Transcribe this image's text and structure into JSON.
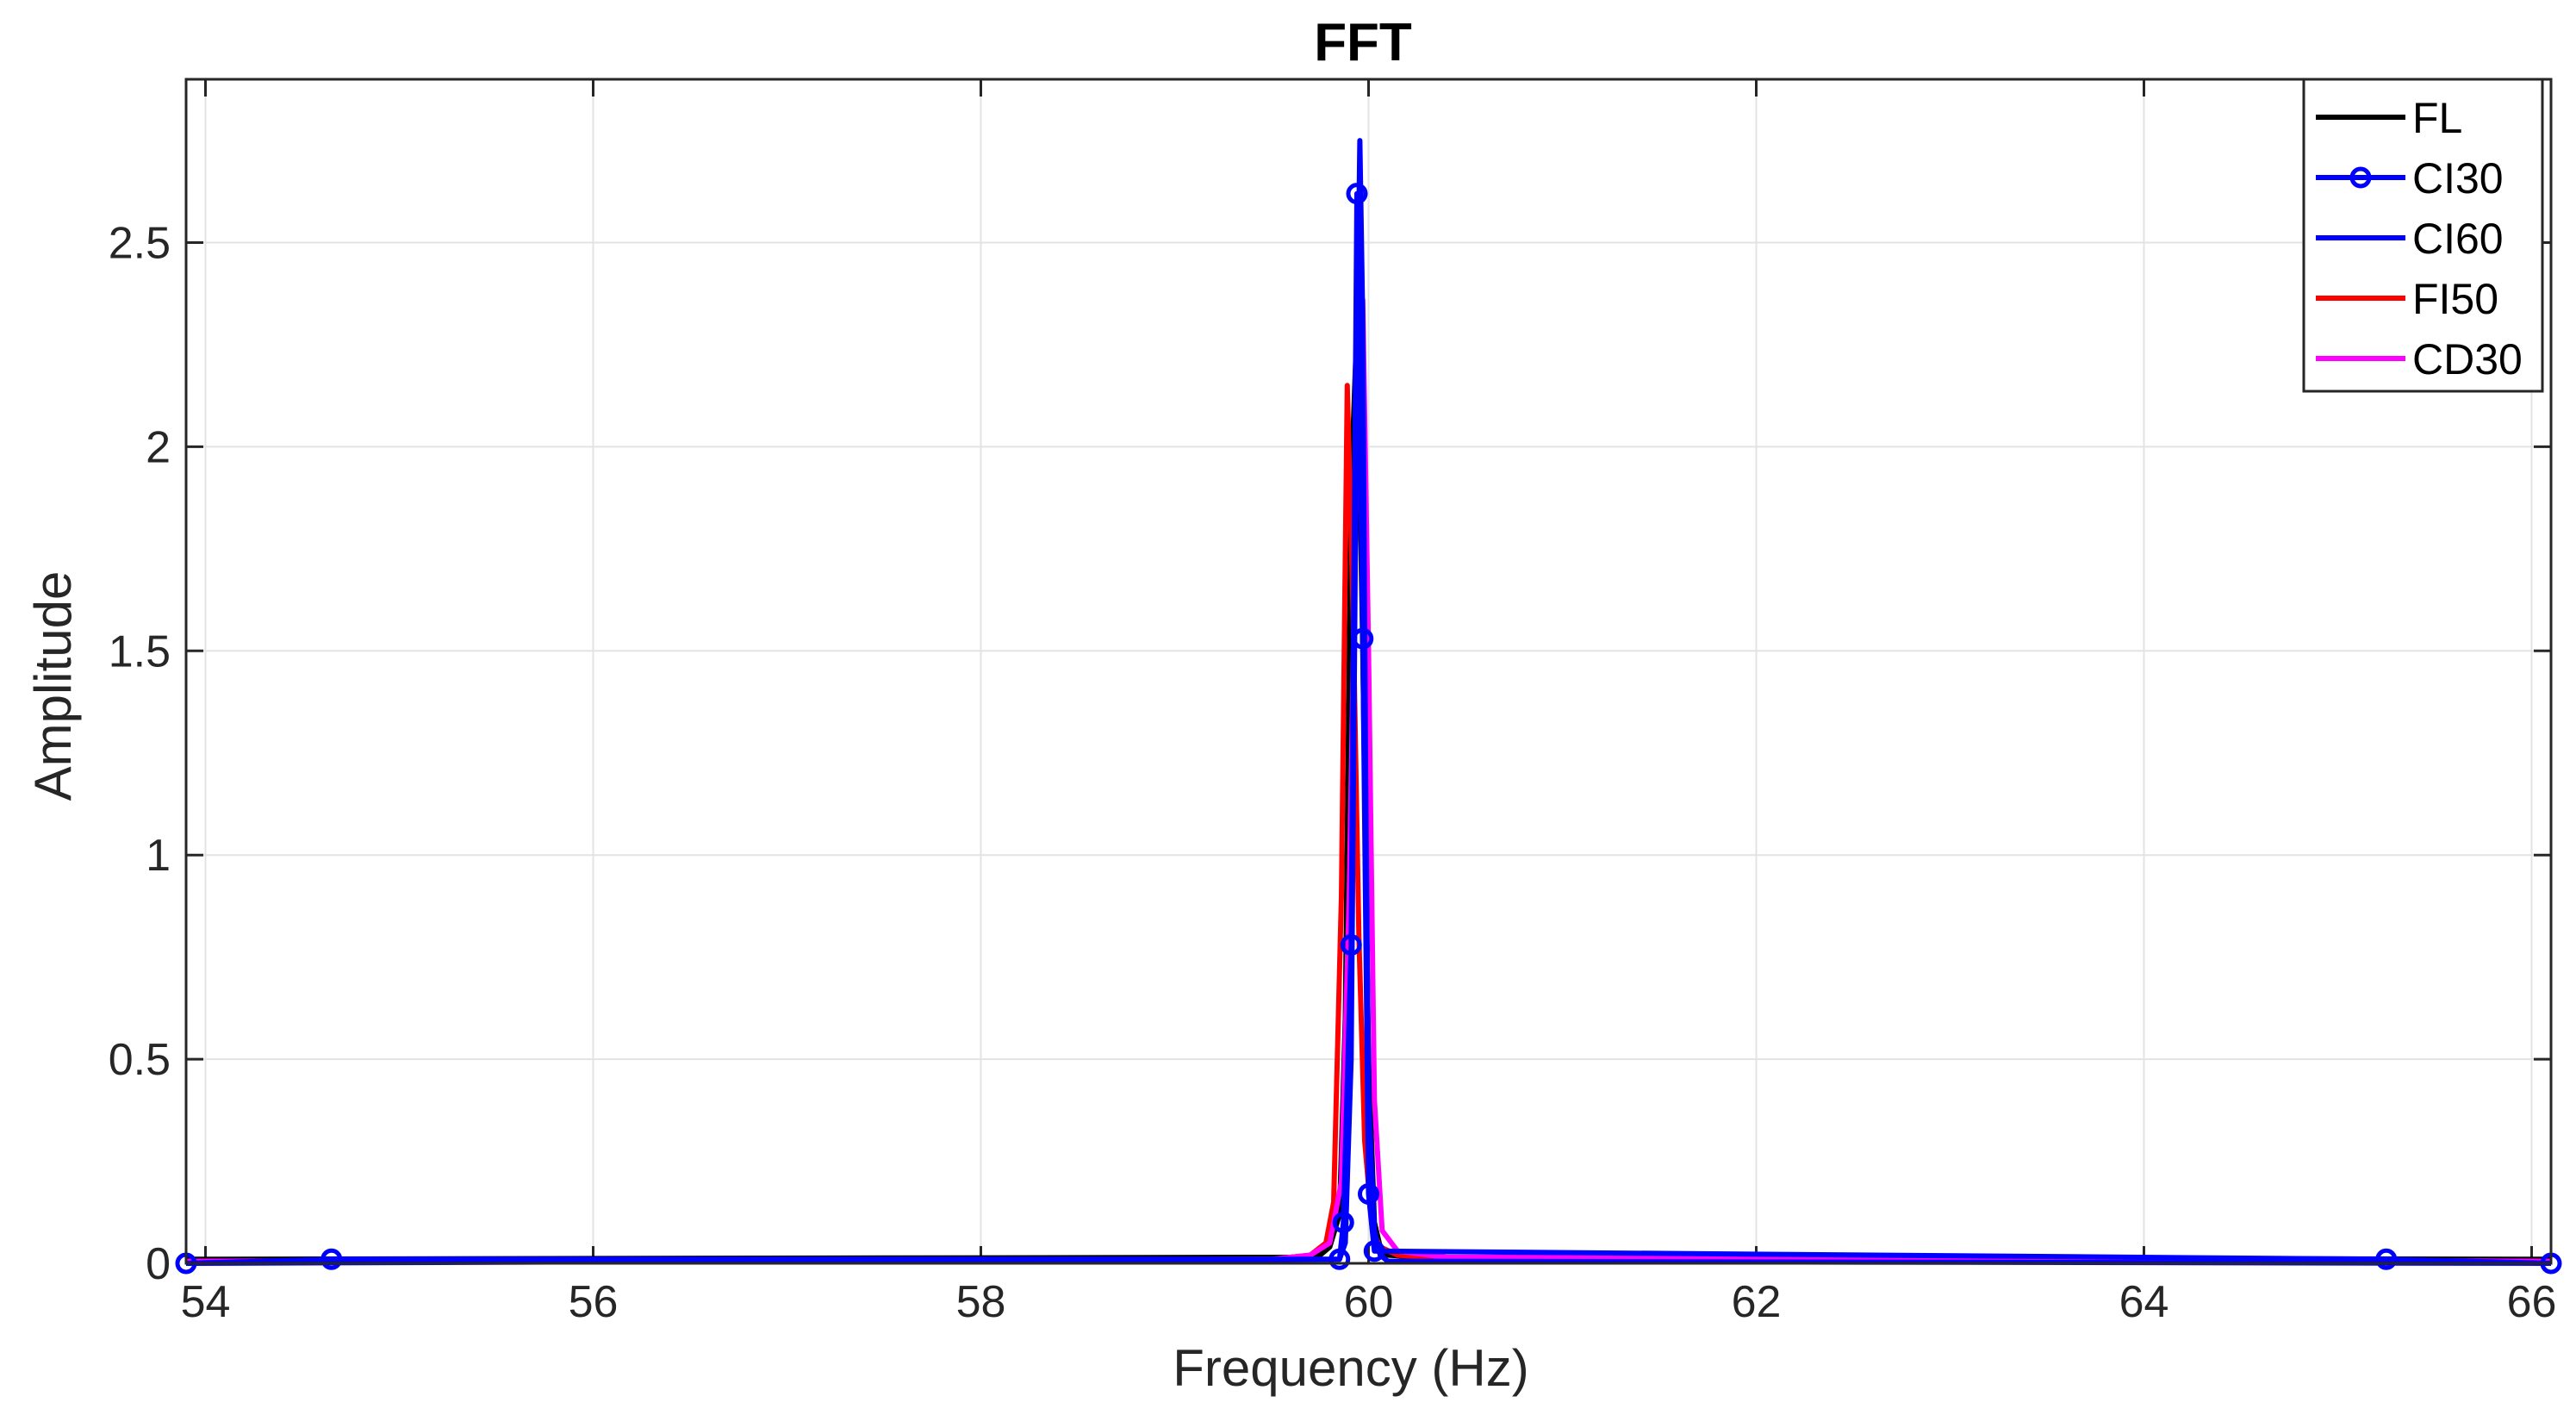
{
  "chart_data": {
    "type": "line",
    "title": "FFT",
    "xlabel": "Frequency (Hz)",
    "ylabel": "Amplitude",
    "xlim": [
      53.9,
      66.1
    ],
    "ylim": [
      0,
      2.9
    ],
    "xticks": [
      54,
      56,
      58,
      60,
      62,
      64,
      66
    ],
    "yticks": [
      0,
      0.5,
      1,
      1.5,
      2,
      2.5
    ],
    "ytick_labels": [
      "0",
      "0.5",
      "1",
      "1.5",
      "2",
      "2.5"
    ],
    "grid": true,
    "legend_position": "top-right",
    "series": [
      {
        "name": "FL",
        "color": "#000000",
        "marker": "none",
        "x": [
          53.9,
          59.6,
          59.75,
          59.8,
          59.85,
          59.88,
          59.91,
          59.94,
          59.97,
          60.0,
          60.03,
          60.06,
          60.1,
          60.25,
          66.1
        ],
        "y": [
          0.01,
          0.015,
          0.02,
          0.04,
          0.12,
          0.6,
          1.9,
          2.3,
          1.5,
          0.5,
          0.1,
          0.04,
          0.02,
          0.015,
          0.01
        ]
      },
      {
        "name": "CI30",
        "color": "#0000ff",
        "marker": "circle",
        "x": [
          53.9,
          54.65,
          59.85,
          59.87,
          59.91,
          59.94,
          59.97,
          60.0,
          60.03,
          65.25,
          66.1
        ],
        "y": [
          0.0,
          0.01,
          0.01,
          0.1,
          0.78,
          2.62,
          1.53,
          0.17,
          0.03,
          0.01,
          0.0
        ]
      },
      {
        "name": "CI60",
        "color": "#0000ff",
        "marker": "none",
        "x": [
          53.9,
          59.85,
          59.88,
          59.91,
          59.94,
          59.955,
          59.97,
          59.985,
          60.0,
          60.03,
          60.06,
          60.1,
          66.1
        ],
        "y": [
          0.0,
          0.01,
          0.05,
          0.5,
          2.2,
          2.75,
          2.3,
          1.2,
          0.4,
          0.08,
          0.02,
          0.005,
          0.0
        ]
      },
      {
        "name": "FI50",
        "color": "#ff0000",
        "marker": "none",
        "x": [
          53.9,
          59.5,
          59.7,
          59.78,
          59.82,
          59.86,
          59.89,
          59.92,
          59.95,
          59.98,
          60.02,
          60.06,
          60.15,
          60.4,
          66.1
        ],
        "y": [
          0.005,
          0.01,
          0.02,
          0.05,
          0.15,
          0.9,
          2.15,
          1.6,
          0.8,
          0.3,
          0.08,
          0.04,
          0.02,
          0.01,
          0.005
        ]
      },
      {
        "name": "CD30",
        "color": "#ff00ff",
        "marker": "none",
        "x": [
          53.9,
          59.5,
          59.7,
          59.8,
          59.86,
          59.9,
          59.94,
          59.97,
          60.0,
          60.03,
          60.07,
          60.15,
          60.4,
          66.1
        ],
        "y": [
          0.005,
          0.01,
          0.02,
          0.05,
          0.2,
          0.9,
          2.0,
          2.36,
          1.5,
          0.4,
          0.08,
          0.03,
          0.015,
          0.005
        ]
      }
    ]
  }
}
